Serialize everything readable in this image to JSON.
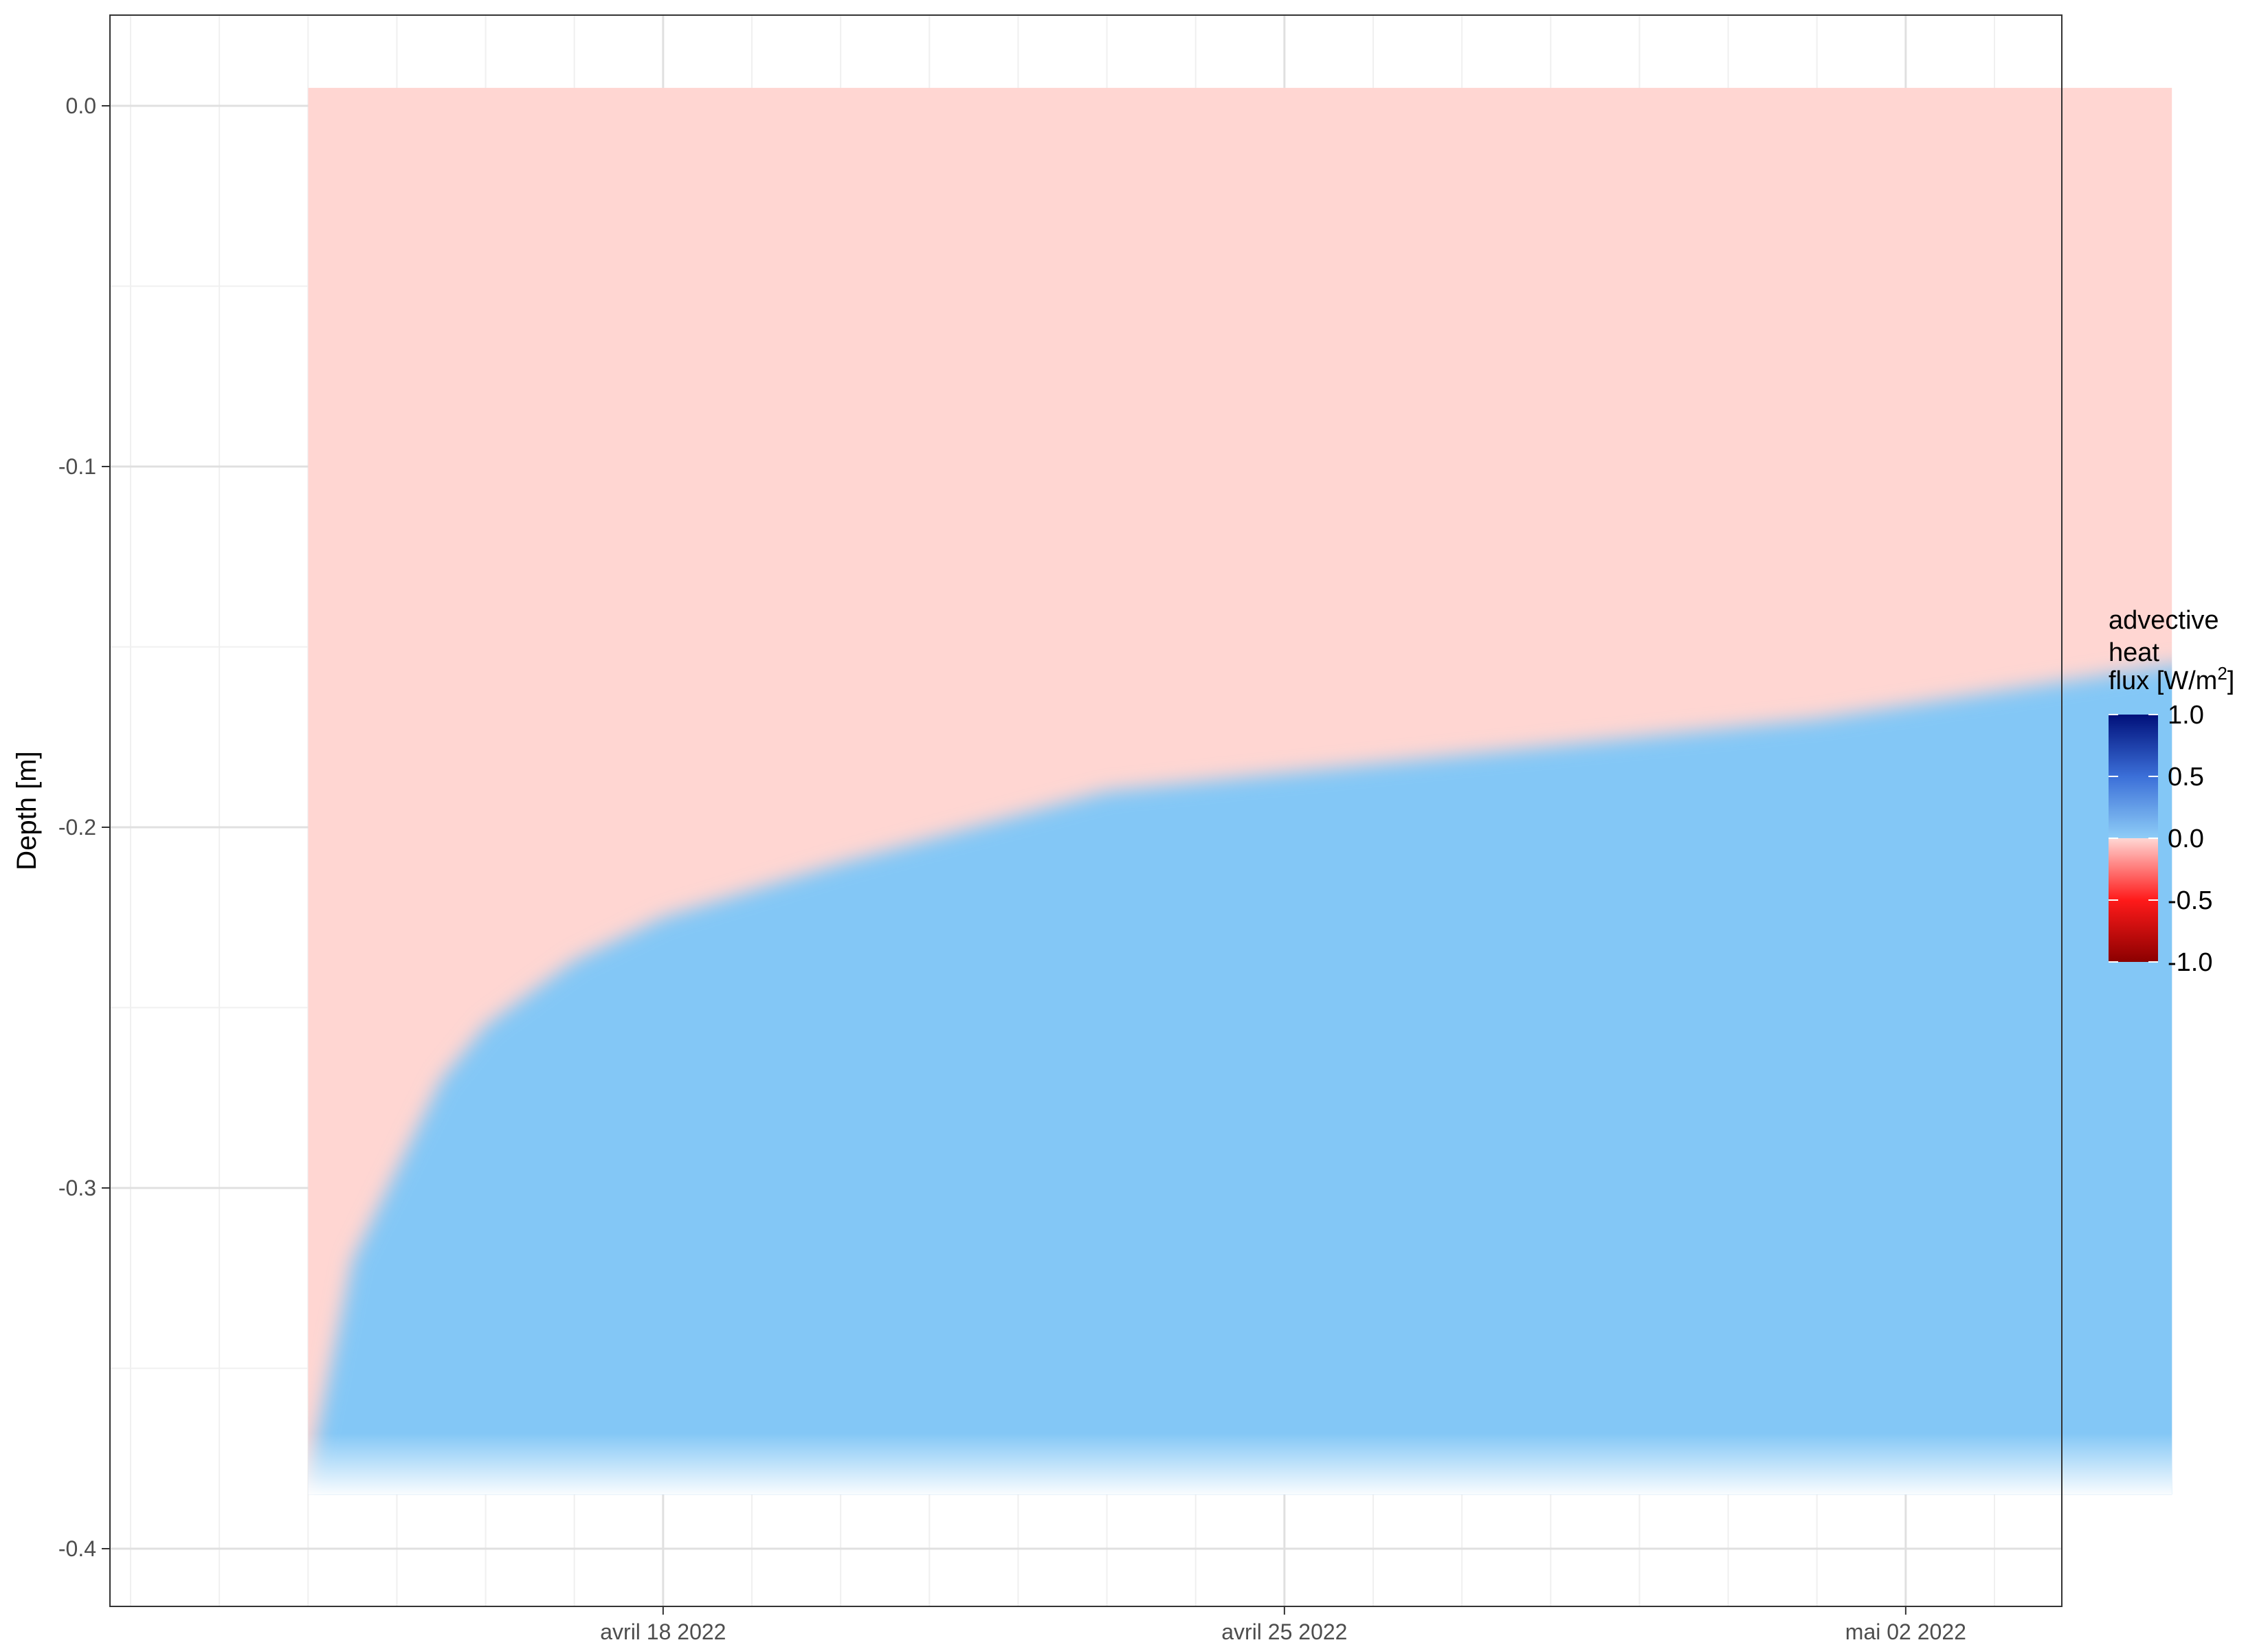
{
  "chart_data": {
    "type": "heatmap",
    "title": "",
    "xlabel": "",
    "ylabel": "Depth [m]",
    "x_ticks": [
      "avril 18 2022",
      "avril 25 2022",
      "mai 02 2022"
    ],
    "x_range": [
      "2022-04-14",
      "2022-05-05"
    ],
    "y_ticks": [
      "0.0",
      "-0.1",
      "-0.2",
      "-0.3",
      "-0.4"
    ],
    "y_range": [
      -0.4,
      0.0
    ],
    "grid": true,
    "legend": {
      "title_lines": [
        "advective",
        "heat",
        "flux [W/m",
        "2",
        "]"
      ],
      "labels": [
        "1.0",
        "0.5",
        "0.0",
        "-0.5",
        "-1.0"
      ],
      "range": [
        -1.0,
        1.0
      ],
      "placement": "right",
      "colors": {
        "high": "#00107a",
        "mid_high": "#3b6fd8",
        "zero_blue": "#8ecdf7",
        "zero_red": "#ffd7d4",
        "mid_low": "#ff1a1a",
        "low": "#8b0000"
      }
    },
    "field": {
      "surface_value": -0.12,
      "deep_value": 0.2,
      "bottom_value": 0.0,
      "boundary_depths": [
        {
          "date": "2022-04-14",
          "depth": -0.38
        },
        {
          "date": "2022-04-14T12:00",
          "depth": -0.32
        },
        {
          "date": "2022-04-15",
          "depth": -0.295
        },
        {
          "date": "2022-04-15T12:00",
          "depth": -0.27
        },
        {
          "date": "2022-04-16",
          "depth": -0.255
        },
        {
          "date": "2022-04-17",
          "depth": -0.237
        },
        {
          "date": "2022-04-18",
          "depth": -0.225
        },
        {
          "date": "2022-04-20",
          "depth": -0.21
        },
        {
          "date": "2022-04-23",
          "depth": -0.19
        },
        {
          "date": "2022-04-27",
          "depth": -0.18
        },
        {
          "date": "2022-05-01",
          "depth": -0.17
        },
        {
          "date": "2022-05-05",
          "depth": -0.155
        }
      ]
    }
  }
}
